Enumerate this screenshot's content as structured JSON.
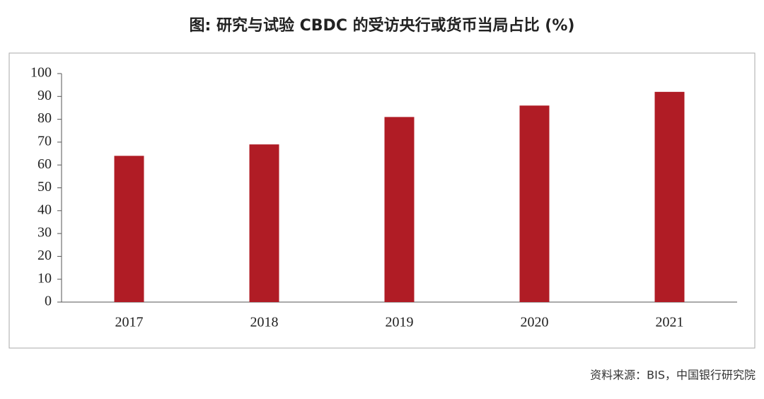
{
  "chart_data": {
    "type": "bar",
    "title": "图: 研究与试验 CBDC 的受访央行或货币当局占比 (%)",
    "source": "资料来源：BIS，中国银行研究院",
    "categories": [
      "2017",
      "2018",
      "2019",
      "2020",
      "2021"
    ],
    "values": [
      64,
      69,
      81,
      86,
      92
    ],
    "color": "#b01c25",
    "ylim": [
      0,
      100
    ],
    "yticks": [
      0,
      10,
      20,
      30,
      40,
      50,
      60,
      70,
      80,
      90,
      100
    ],
    "grid": false
  }
}
